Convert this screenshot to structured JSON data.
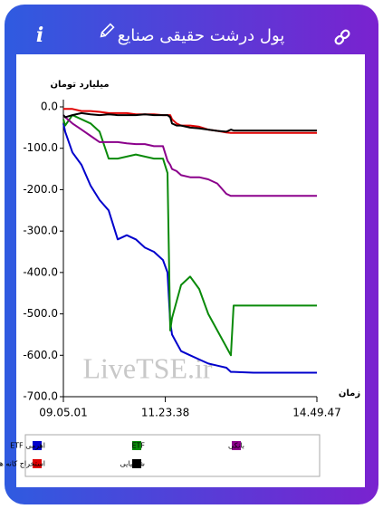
{
  "header": {
    "title": "پول درشت حقیقی صنایع",
    "info": "i"
  },
  "chart_data": {
    "type": "line",
    "y_label": "میلیارد تومان",
    "x_label": "زمان",
    "watermark": "LiveTSE.ir",
    "x": [
      32701,
      32849,
      33440,
      34178,
      34917,
      35656,
      36395,
      37134,
      37873,
      38611,
      39350,
      40089,
      40828,
      41197,
      41419,
      41567,
      41936,
      42305,
      43044,
      43783,
      44522,
      45261,
      45999,
      46369,
      46590,
      48215,
      51171,
      53387
    ],
    "xlim": [
      32701,
      53387
    ],
    "xticks": [
      {
        "value": 32701,
        "label": "09.05.01"
      },
      {
        "value": 41018,
        "label": "11.23.38"
      },
      {
        "value": 53387,
        "label": "14.49.47"
      }
    ],
    "ylim": [
      -700,
      0
    ],
    "yticks": [
      {
        "value": 0,
        "label": "0.0"
      },
      {
        "value": -100,
        "label": "-100.0"
      },
      {
        "value": -200,
        "label": "-200.0"
      },
      {
        "value": -300,
        "label": "-300.0"
      },
      {
        "value": -400,
        "label": "-400.0"
      },
      {
        "value": -500,
        "label": "-500.0"
      },
      {
        "value": -600,
        "label": "-600.0"
      },
      {
        "value": -700,
        "label": "-700.0"
      }
    ],
    "series": [
      {
        "name": "ETF اهرمی",
        "color": "#0000cc",
        "values": [
          -40,
          -60,
          -110,
          -140,
          -190,
          -225,
          -250,
          -320,
          -310,
          -320,
          -340,
          -350,
          -370,
          -400,
          -520,
          -550,
          -570,
          -590,
          -600,
          -610,
          -620,
          -625,
          -630,
          -640,
          -640,
          -642,
          -642,
          -642
        ]
      },
      {
        "name": "ETF",
        "color": "#0a8a0a",
        "values": [
          -30,
          -45,
          -20,
          -30,
          -40,
          -60,
          -125,
          -125,
          -120,
          -115,
          -120,
          -125,
          -125,
          -160,
          -540,
          -510,
          -470,
          -430,
          -410,
          -440,
          -500,
          -540,
          -580,
          -600,
          -480,
          -480,
          -480,
          -480
        ]
      },
      {
        "name": "بانکی",
        "color": "#8b008b",
        "values": [
          -20,
          -25,
          -40,
          -55,
          -70,
          -85,
          -85,
          -85,
          -88,
          -90,
          -90,
          -95,
          -95,
          -130,
          -140,
          -150,
          -155,
          -165,
          -170,
          -170,
          -175,
          -185,
          -210,
          -215,
          -215,
          -215,
          -215,
          -215
        ]
      },
      {
        "name": "استخراج کانه هاي فلزي",
        "color": "#e00000",
        "values": [
          -5,
          -5,
          -5,
          -10,
          -10,
          -12,
          -15,
          -15,
          -15,
          -18,
          -18,
          -18,
          -20,
          -20,
          -20,
          -30,
          -40,
          -45,
          -45,
          -48,
          -55,
          -58,
          -62,
          -63,
          -63,
          -63,
          -63,
          -63
        ]
      },
      {
        "name": "شیمیایی",
        "color": "#000000",
        "values": [
          -20,
          -25,
          -20,
          -15,
          -18,
          -20,
          -18,
          -20,
          -20,
          -20,
          -18,
          -20,
          -20,
          -20,
          -25,
          -40,
          -45,
          -45,
          -50,
          -52,
          -55,
          -58,
          -60,
          -55,
          -57,
          -57,
          -57,
          -57
        ]
      }
    ]
  }
}
